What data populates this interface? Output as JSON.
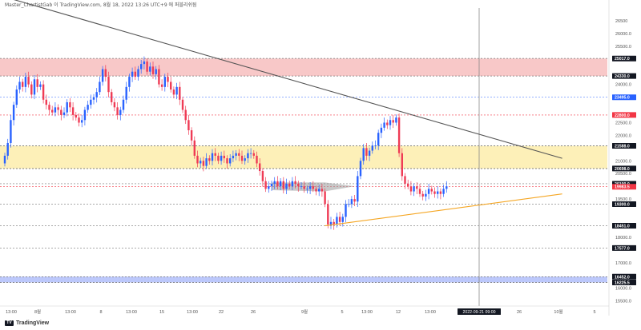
{
  "header": {
    "text": "Master_ChartistGab 이 TradingView.com, 8월 18, 2022 13:26 UTC+9 에 퍼블리쉬됨"
  },
  "branding": {
    "name": "TradingView",
    "mark": "TV"
  },
  "chart_data": {
    "type": "candlestick",
    "ylim": [
      15300,
      27000
    ],
    "y_ticks": [
      "26500",
      "26000.0",
      "25500.0",
      "24000.0",
      "23500.0",
      "22500.0",
      "22000.0",
      "21000.0",
      "20500.0",
      "19500.0",
      "18000.0",
      "17000.0",
      "16000.0",
      "15500.0"
    ],
    "y_tick_values": [
      26500,
      26000,
      25500,
      24000,
      23500,
      22500,
      22000,
      21000,
      20500,
      19500,
      18000,
      17000,
      16000,
      15500
    ],
    "x_ticks": [
      "13:00",
      "8월",
      "13:00",
      "8",
      "13:00",
      "15",
      "13:00",
      "22",
      "26",
      "9월",
      "5",
      "13:00",
      "12",
      "13:00",
      "26",
      "10월",
      "5"
    ],
    "time_label": "2022-09-21  09:00",
    "price_tags": [
      {
        "label": "25017.0",
        "value": 25017,
        "color": "#131722"
      },
      {
        "label": "24330.0",
        "value": 24330,
        "color": "#131722"
      },
      {
        "label": "23495.0",
        "value": 23495,
        "color": "#2962ff"
      },
      {
        "label": "22800.0",
        "value": 22800,
        "color": "#f23645"
      },
      {
        "label": "21588.0",
        "value": 21588,
        "color": "#131722"
      },
      {
        "label": "20698.0",
        "value": 20698,
        "color": "#131722"
      },
      {
        "label": "20100.0",
        "value": 20100,
        "color": "#131722"
      },
      {
        "label": "19983.5",
        "value": 19983.5,
        "color": "#f23645"
      },
      {
        "label": "19300.0",
        "value": 19300,
        "color": "#131722"
      },
      {
        "label": "18451.0",
        "value": 18451,
        "color": "#131722"
      },
      {
        "label": "17577.0",
        "value": 17577,
        "color": "#131722"
      },
      {
        "label": "16452.0",
        "value": 16452,
        "color": "#131722"
      },
      {
        "label": "16225.5",
        "value": 16225.5,
        "color": "#131722"
      }
    ],
    "zones": [
      {
        "name": "resistance-zone",
        "from": 24330,
        "to": 25017,
        "color": "#f8c8c8"
      },
      {
        "name": "support-zone",
        "from": 20698,
        "to": 21588,
        "color": "#fdf0b8"
      },
      {
        "name": "low-zone",
        "from": 16225.5,
        "to": 16452,
        "color": "#bcc8fb"
      }
    ],
    "close_series": [
      21200,
      21700,
      22600,
      23200,
      23800,
      24100,
      23900,
      24300,
      24000,
      23600,
      24200,
      23900,
      24000,
      23400,
      23200,
      23000,
      22900,
      23100,
      23000,
      22800,
      22900,
      23300,
      23100,
      22800,
      22700,
      22500,
      22600,
      23000,
      23200,
      23400,
      23500,
      23700,
      24100,
      24600,
      24300,
      23700,
      23300,
      23100,
      22800,
      23000,
      23400,
      23900,
      24300,
      24500,
      24300,
      24600,
      24800,
      24900,
      24500,
      24700,
      24400,
      24600,
      24000,
      23900,
      24300,
      24100,
      23800,
      23600,
      23900,
      23400,
      23000,
      22600,
      22200,
      21800,
      21200,
      20900,
      21000,
      20800,
      21100,
      21000,
      21300,
      21200,
      21000,
      21200,
      21100,
      20900,
      21100,
      21200,
      21300,
      21200,
      21000,
      21100,
      21300,
      21300,
      21200,
      20900,
      20600,
      20200,
      19900,
      20000,
      20100,
      20200,
      20000,
      20200,
      19900,
      20100,
      20000,
      20200,
      20100,
      20000,
      20000,
      19900,
      19900,
      20000,
      19900,
      19800,
      19900,
      19800,
      19300,
      18500,
      18600,
      18500,
      18800,
      18600,
      18800,
      19300,
      19300,
      19500,
      19400,
      20400,
      21000,
      21500,
      21200,
      21400,
      21600,
      21600,
      22100,
      22300,
      22500,
      22400,
      22600,
      22500,
      22700,
      21300,
      20400,
      20100,
      20000,
      19800,
      20000,
      19900,
      19700,
      19600,
      19700,
      19900,
      19800,
      19700,
      19800,
      19700,
      19900,
      20000
    ],
    "trendlines": [
      {
        "name": "descending-trendline",
        "from": {
          "i": -2,
          "v": 27500
        },
        "to": {
          "i": 188,
          "v": 21100
        },
        "color": "#555555"
      },
      {
        "name": "ascending-trendline",
        "from": {
          "i": 108,
          "v": 18450
        },
        "to": {
          "i": 188,
          "v": 19700
        },
        "color": "#f5a623"
      }
    ]
  }
}
